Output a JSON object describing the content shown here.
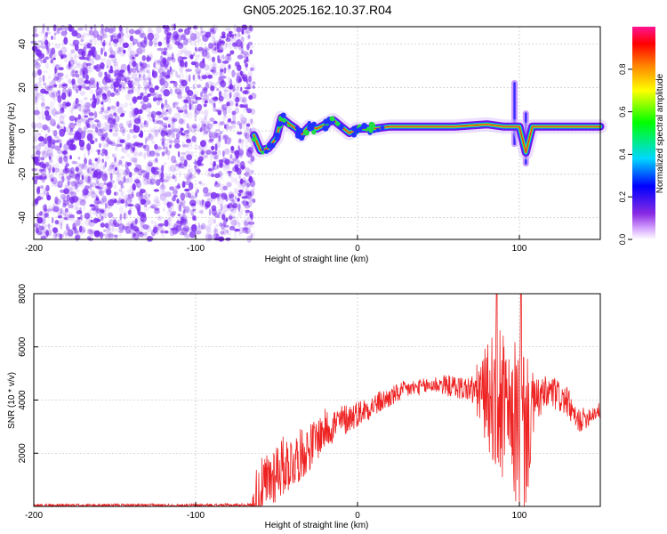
{
  "title": "GN05.2025.162.10.37.R04",
  "colors": {
    "line": "#ee2222",
    "axes": "#000000",
    "grid": "#b8b8b8",
    "scatter": "#7b2cf0",
    "band_core": "#e8202a",
    "band_edge": "#7a10e8"
  },
  "chart_data": [
    {
      "type": "heatmap",
      "title": "GN05.2025.162.10.37.R04",
      "xlabel": "Height of straight line (km)",
      "ylabel": "Frequency (Hz)",
      "xlim": [
        -200,
        150
      ],
      "ylim": [
        -50,
        48
      ],
      "x_ticks": [
        -200,
        -100,
        0,
        100
      ],
      "y_ticks": [
        -40,
        -20,
        0,
        20,
        40
      ],
      "grid": true,
      "noise_region": {
        "x_range": [
          -200,
          -64
        ],
        "y_range": [
          -50,
          48
        ]
      },
      "band": {
        "points": [
          [
            -64,
            -2
          ],
          [
            -60,
            -9
          ],
          [
            -55,
            -8
          ],
          [
            -50,
            -3
          ],
          [
            -47,
            6
          ],
          [
            -42,
            3
          ],
          [
            -38,
            1
          ],
          [
            -35,
            -2
          ],
          [
            -30,
            2
          ],
          [
            -25,
            1
          ],
          [
            -20,
            3
          ],
          [
            -15,
            5
          ],
          [
            -10,
            2
          ],
          [
            -5,
            -1
          ],
          [
            0,
            1
          ],
          [
            10,
            1
          ],
          [
            20,
            2
          ],
          [
            40,
            2
          ],
          [
            60,
            2
          ],
          [
            80,
            3
          ],
          [
            90,
            2
          ],
          [
            100,
            2
          ],
          [
            104,
            -10
          ],
          [
            108,
            2
          ],
          [
            120,
            2
          ],
          [
            150,
            2
          ]
        ],
        "spikes": [
          {
            "x": 97,
            "y_range": [
              -6,
              22
            ]
          },
          {
            "x": 104,
            "y_range": [
              -15,
              8
            ]
          }
        ]
      },
      "colorbar": {
        "label": "Normalized spectral amplitude",
        "range": [
          0.0,
          1.0
        ],
        "ticks": [
          0.0,
          0.2,
          0.4,
          0.6,
          0.8
        ],
        "tick_labels": [
          "0.0",
          "0.2",
          "0.4",
          "0.6",
          "0.8"
        ],
        "colormap": "rainbow (white → violet → blue → cyan → green → yellow → red → magenta)"
      }
    },
    {
      "type": "line",
      "xlabel": "Height of straight line (km)",
      "ylabel": "SNR (10 * v/v)",
      "xlim": [
        -200,
        150
      ],
      "ylim": [
        0,
        8000
      ],
      "x_ticks": [
        -200,
        -100,
        0,
        100
      ],
      "y_ticks": [
        2000,
        4000,
        6000,
        8000
      ],
      "grid": true,
      "series": [
        {
          "envelope": [
            [
              -200,
              40
            ],
            [
              -100,
              40
            ],
            [
              -65,
              50
            ],
            [
              -55,
              900
            ],
            [
              -50,
              1400
            ],
            [
              -40,
              1700
            ],
            [
              -30,
              2200
            ],
            [
              -20,
              2900
            ],
            [
              -10,
              3200
            ],
            [
              0,
              3500
            ],
            [
              10,
              3800
            ],
            [
              20,
              4100
            ],
            [
              30,
              4400
            ],
            [
              40,
              4500
            ],
            [
              50,
              4600
            ],
            [
              60,
              4500
            ],
            [
              70,
              4400
            ],
            [
              80,
              4200
            ],
            [
              85,
              4000
            ],
            [
              90,
              3700
            ],
            [
              95,
              3300
            ],
            [
              100,
              3000
            ],
            [
              105,
              2900
            ],
            [
              110,
              4000
            ],
            [
              120,
              4300
            ],
            [
              130,
              3900
            ],
            [
              135,
              3200
            ],
            [
              140,
              3300
            ],
            [
              145,
              3500
            ],
            [
              150,
              3600
            ]
          ],
          "noise_amplitude": [
            [
              -200,
              60
            ],
            [
              -65,
              60
            ],
            [
              -64,
              1300
            ],
            [
              -50,
              1200
            ],
            [
              -30,
              900
            ],
            [
              0,
              500
            ],
            [
              40,
              300
            ],
            [
              70,
              500
            ],
            [
              82,
              2200
            ],
            [
              88,
              3300
            ],
            [
              95,
              1800
            ],
            [
              98,
              3600
            ],
            [
              103,
              3400
            ],
            [
              110,
              800
            ],
            [
              150,
              300
            ]
          ],
          "peaks": [
            {
              "x": 86,
              "y": 8200
            },
            {
              "x": 101,
              "y": 8100
            }
          ]
        }
      ]
    }
  ]
}
